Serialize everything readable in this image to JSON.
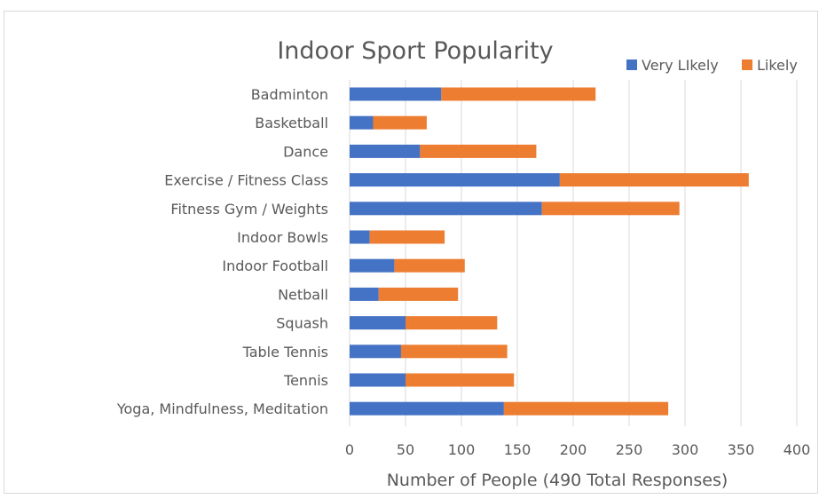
{
  "chart_data": {
    "type": "bar",
    "orientation": "horizontal",
    "stacked": true,
    "title": "Indoor Sport Popularity",
    "xlabel": "Number of People (490 Total Responses)",
    "ylabel": "",
    "xlim": [
      0,
      400
    ],
    "xticks": [
      0,
      50,
      100,
      150,
      200,
      250,
      300,
      350,
      400
    ],
    "grid": true,
    "legend_position": "top-right",
    "categories": [
      "Badminton",
      "Basketball",
      "Dance",
      "Exercise / Fitness Class",
      "Fitness Gym / Weights",
      "Indoor Bowls",
      "Indoor Football",
      "Netball",
      "Squash",
      "Table Tennis",
      "Tennis",
      "Yoga, Mindfulness, Meditation"
    ],
    "series": [
      {
        "name": "Very LIkely",
        "color": "#4472c4",
        "values": [
          82,
          21,
          63,
          188,
          172,
          18,
          40,
          26,
          50,
          46,
          50,
          138
        ]
      },
      {
        "name": "Likely",
        "color": "#ed7d31",
        "values": [
          138,
          48,
          104,
          169,
          123,
          67,
          63,
          71,
          82,
          95,
          97,
          147
        ]
      }
    ]
  }
}
